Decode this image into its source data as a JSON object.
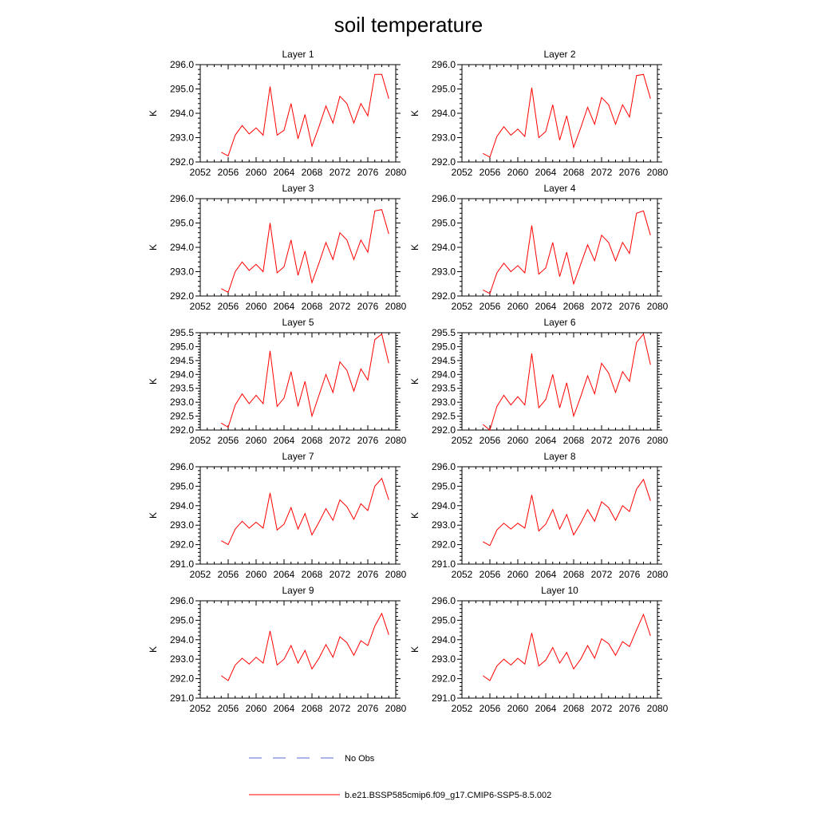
{
  "title": "soil temperature",
  "colors": {
    "model": "#ff0000",
    "obs": "#5a6bd6",
    "axis": "#000000"
  },
  "legend": {
    "items": [
      {
        "label": "No Obs",
        "style": "dashed",
        "color": "#5a6bd6"
      },
      {
        "label": "b.e21.BSSP585cmip6.f09_g17.CMIP6-SSP5-8.5.002",
        "style": "solid",
        "color": "#ff0000"
      }
    ]
  },
  "chart_data": [
    {
      "type": "line",
      "title": "Layer 1",
      "ylabel": "K",
      "xlim": [
        2052,
        2080
      ],
      "ylim": [
        292.0,
        296.0
      ],
      "xticks": [
        "2052",
        "2056",
        "2060",
        "2064",
        "2068",
        "2072",
        "2076",
        "2080"
      ],
      "yticks": [
        "292.0",
        "293.0",
        "294.0",
        "295.0",
        "296.0"
      ],
      "series": [
        {
          "name": "b.e21.BSSP585cmip6.f09_g17.CMIP6-SSP5-8.5.002",
          "x": [
            2055,
            2056,
            2057,
            2058,
            2059,
            2060,
            2061,
            2062,
            2063,
            2064,
            2065,
            2066,
            2067,
            2068,
            2069,
            2070,
            2071,
            2072,
            2073,
            2074,
            2075,
            2076,
            2077,
            2078,
            2079
          ],
          "y": [
            292.4,
            292.25,
            293.1,
            293.5,
            293.15,
            293.4,
            293.1,
            295.1,
            293.1,
            293.3,
            294.4,
            292.95,
            293.95,
            292.65,
            293.45,
            294.3,
            293.6,
            294.7,
            294.4,
            293.6,
            294.4,
            293.9,
            295.6,
            295.6,
            294.6
          ]
        }
      ]
    },
    {
      "type": "line",
      "title": "Layer 2",
      "ylabel": "K",
      "xlim": [
        2052,
        2080
      ],
      "ylim": [
        292.0,
        296.0
      ],
      "xticks": [
        "2052",
        "2056",
        "2060",
        "2064",
        "2068",
        "2072",
        "2076",
        "2080"
      ],
      "yticks": [
        "292.0",
        "293.0",
        "294.0",
        "295.0",
        "296.0"
      ],
      "series": [
        {
          "name": "b.e21.BSSP585cmip6.f09_g17.CMIP6-SSP5-8.5.002",
          "x": [
            2055,
            2056,
            2057,
            2058,
            2059,
            2060,
            2061,
            2062,
            2063,
            2064,
            2065,
            2066,
            2067,
            2068,
            2069,
            2070,
            2071,
            2072,
            2073,
            2074,
            2075,
            2076,
            2077,
            2078,
            2079
          ],
          "y": [
            292.35,
            292.2,
            293.05,
            293.45,
            293.1,
            293.35,
            293.05,
            295.05,
            293.0,
            293.25,
            294.35,
            292.9,
            293.9,
            292.6,
            293.4,
            294.25,
            293.55,
            294.65,
            294.35,
            293.55,
            294.35,
            293.85,
            295.55,
            295.6,
            294.6
          ]
        }
      ]
    },
    {
      "type": "line",
      "title": "Layer 3",
      "ylabel": "K",
      "xlim": [
        2052,
        2080
      ],
      "ylim": [
        292.0,
        296.0
      ],
      "xticks": [
        "2052",
        "2056",
        "2060",
        "2064",
        "2068",
        "2072",
        "2076",
        "2080"
      ],
      "yticks": [
        "292.0",
        "293.0",
        "294.0",
        "295.0",
        "296.0"
      ],
      "series": [
        {
          "name": "b.e21.BSSP585cmip6.f09_g17.CMIP6-SSP5-8.5.002",
          "x": [
            2055,
            2056,
            2057,
            2058,
            2059,
            2060,
            2061,
            2062,
            2063,
            2064,
            2065,
            2066,
            2067,
            2068,
            2069,
            2070,
            2071,
            2072,
            2073,
            2074,
            2075,
            2076,
            2077,
            2078,
            2079
          ],
          "y": [
            292.3,
            292.15,
            293.0,
            293.4,
            293.05,
            293.3,
            293.0,
            295.0,
            292.95,
            293.2,
            294.3,
            292.85,
            293.85,
            292.55,
            293.35,
            294.2,
            293.5,
            294.6,
            294.3,
            293.5,
            294.3,
            293.8,
            295.5,
            295.55,
            294.55
          ]
        }
      ]
    },
    {
      "type": "line",
      "title": "Layer 4",
      "ylabel": "K",
      "xlim": [
        2052,
        2080
      ],
      "ylim": [
        292.0,
        296.0
      ],
      "xticks": [
        "2052",
        "2056",
        "2060",
        "2064",
        "2068",
        "2072",
        "2076",
        "2080"
      ],
      "yticks": [
        "292.0",
        "293.0",
        "294.0",
        "295.0",
        "296.0"
      ],
      "series": [
        {
          "name": "b.e21.BSSP585cmip6.f09_g17.CMIP6-SSP5-8.5.002",
          "x": [
            2055,
            2056,
            2057,
            2058,
            2059,
            2060,
            2061,
            2062,
            2063,
            2064,
            2065,
            2066,
            2067,
            2068,
            2069,
            2070,
            2071,
            2072,
            2073,
            2074,
            2075,
            2076,
            2077,
            2078,
            2079
          ],
          "y": [
            292.25,
            292.1,
            292.95,
            293.35,
            293.0,
            293.25,
            292.95,
            294.9,
            292.9,
            293.15,
            294.2,
            292.8,
            293.8,
            292.5,
            293.3,
            294.1,
            293.45,
            294.5,
            294.2,
            293.45,
            294.2,
            293.75,
            295.4,
            295.5,
            294.5
          ]
        }
      ]
    },
    {
      "type": "line",
      "title": "Layer 5",
      "ylabel": "K",
      "xlim": [
        2052,
        2080
      ],
      "ylim": [
        292.0,
        295.5
      ],
      "xticks": [
        "2052",
        "2056",
        "2060",
        "2064",
        "2068",
        "2072",
        "2076",
        "2080"
      ],
      "yticks": [
        "292.0",
        "292.5",
        "293.0",
        "293.5",
        "294.0",
        "294.5",
        "295.0",
        "295.5"
      ],
      "series": [
        {
          "name": "b.e21.BSSP585cmip6.f09_g17.CMIP6-SSP5-8.5.002",
          "x": [
            2055,
            2056,
            2057,
            2058,
            2059,
            2060,
            2061,
            2062,
            2063,
            2064,
            2065,
            2066,
            2067,
            2068,
            2069,
            2070,
            2071,
            2072,
            2073,
            2074,
            2075,
            2076,
            2077,
            2078,
            2079
          ],
          "y": [
            292.25,
            292.1,
            292.9,
            293.3,
            292.95,
            293.25,
            292.95,
            294.85,
            292.85,
            293.15,
            294.1,
            292.85,
            293.75,
            292.5,
            293.25,
            294.0,
            293.35,
            294.45,
            294.15,
            293.4,
            294.2,
            293.8,
            295.25,
            295.45,
            294.4
          ]
        }
      ]
    },
    {
      "type": "line",
      "title": "Layer 6",
      "ylabel": "K",
      "xlim": [
        2052,
        2080
      ],
      "ylim": [
        292.0,
        295.5
      ],
      "xticks": [
        "2052",
        "2056",
        "2060",
        "2064",
        "2068",
        "2072",
        "2076",
        "2080"
      ],
      "yticks": [
        "292.0",
        "292.5",
        "293.0",
        "293.5",
        "294.0",
        "294.5",
        "295.0",
        "295.5"
      ],
      "series": [
        {
          "name": "b.e21.BSSP585cmip6.f09_g17.CMIP6-SSP5-8.5.002",
          "x": [
            2055,
            2056,
            2057,
            2058,
            2059,
            2060,
            2061,
            2062,
            2063,
            2064,
            2065,
            2066,
            2067,
            2068,
            2069,
            2070,
            2071,
            2072,
            2073,
            2074,
            2075,
            2076,
            2077,
            2078,
            2079
          ],
          "y": [
            292.2,
            292.0,
            292.85,
            293.25,
            292.9,
            293.2,
            292.9,
            294.75,
            292.8,
            293.1,
            294.0,
            292.8,
            293.7,
            292.5,
            293.2,
            293.95,
            293.3,
            294.4,
            294.05,
            293.35,
            294.1,
            293.75,
            295.15,
            295.45,
            294.35
          ]
        }
      ]
    },
    {
      "type": "line",
      "title": "Layer 7",
      "ylabel": "K",
      "xlim": [
        2052,
        2080
      ],
      "ylim": [
        291.0,
        296.0
      ],
      "xticks": [
        "2052",
        "2056",
        "2060",
        "2064",
        "2068",
        "2072",
        "2076",
        "2080"
      ],
      "yticks": [
        "291.0",
        "292.0",
        "293.0",
        "294.0",
        "295.0",
        "296.0"
      ],
      "series": [
        {
          "name": "b.e21.BSSP585cmip6.f09_g17.CMIP6-SSP5-8.5.002",
          "x": [
            2055,
            2056,
            2057,
            2058,
            2059,
            2060,
            2061,
            2062,
            2063,
            2064,
            2065,
            2066,
            2067,
            2068,
            2069,
            2070,
            2071,
            2072,
            2073,
            2074,
            2075,
            2076,
            2077,
            2078,
            2079
          ],
          "y": [
            292.2,
            292.0,
            292.8,
            293.2,
            292.85,
            293.15,
            292.85,
            294.65,
            292.75,
            293.05,
            293.9,
            292.8,
            293.6,
            292.5,
            293.15,
            293.85,
            293.25,
            294.3,
            293.95,
            293.3,
            294.1,
            293.75,
            295.0,
            295.4,
            294.3
          ]
        }
      ]
    },
    {
      "type": "line",
      "title": "Layer 8",
      "ylabel": "K",
      "xlim": [
        2052,
        2080
      ],
      "ylim": [
        291.0,
        296.0
      ],
      "xticks": [
        "2052",
        "2056",
        "2060",
        "2064",
        "2068",
        "2072",
        "2076",
        "2080"
      ],
      "yticks": [
        "291.0",
        "292.0",
        "293.0",
        "294.0",
        "295.0",
        "296.0"
      ],
      "series": [
        {
          "name": "b.e21.BSSP585cmip6.f09_g17.CMIP6-SSP5-8.5.002",
          "x": [
            2055,
            2056,
            2057,
            2058,
            2059,
            2060,
            2061,
            2062,
            2063,
            2064,
            2065,
            2066,
            2067,
            2068,
            2069,
            2070,
            2071,
            2072,
            2073,
            2074,
            2075,
            2076,
            2077,
            2078,
            2079
          ],
          "y": [
            292.15,
            291.95,
            292.75,
            293.1,
            292.8,
            293.1,
            292.85,
            294.55,
            292.7,
            293.05,
            293.8,
            292.8,
            293.55,
            292.5,
            293.1,
            293.8,
            293.2,
            294.2,
            293.9,
            293.25,
            294.0,
            293.7,
            294.85,
            295.35,
            294.25
          ]
        }
      ]
    },
    {
      "type": "line",
      "title": "Layer 9",
      "ylabel": "K",
      "xlim": [
        2052,
        2080
      ],
      "ylim": [
        291.0,
        296.0
      ],
      "xticks": [
        "2052",
        "2056",
        "2060",
        "2064",
        "2068",
        "2072",
        "2076",
        "2080"
      ],
      "yticks": [
        "291.0",
        "292.0",
        "293.0",
        "294.0",
        "295.0",
        "296.0"
      ],
      "series": [
        {
          "name": "b.e21.BSSP585cmip6.f09_g17.CMIP6-SSP5-8.5.002",
          "x": [
            2055,
            2056,
            2057,
            2058,
            2059,
            2060,
            2061,
            2062,
            2063,
            2064,
            2065,
            2066,
            2067,
            2068,
            2069,
            2070,
            2071,
            2072,
            2073,
            2074,
            2075,
            2076,
            2077,
            2078,
            2079
          ],
          "y": [
            292.15,
            291.9,
            292.7,
            293.05,
            292.75,
            293.1,
            292.8,
            294.45,
            292.7,
            293.0,
            293.7,
            292.8,
            293.45,
            292.5,
            293.05,
            293.75,
            293.1,
            294.15,
            293.85,
            293.2,
            293.95,
            293.7,
            294.7,
            295.35,
            294.25
          ]
        }
      ]
    },
    {
      "type": "line",
      "title": "Layer 10",
      "ylabel": "K",
      "xlim": [
        2052,
        2080
      ],
      "ylim": [
        291.0,
        296.0
      ],
      "xticks": [
        "2052",
        "2056",
        "2060",
        "2064",
        "2068",
        "2072",
        "2076",
        "2080"
      ],
      "yticks": [
        "291.0",
        "292.0",
        "293.0",
        "294.0",
        "295.0",
        "296.0"
      ],
      "series": [
        {
          "name": "b.e21.BSSP585cmip6.f09_g17.CMIP6-SSP5-8.5.002",
          "x": [
            2055,
            2056,
            2057,
            2058,
            2059,
            2060,
            2061,
            2062,
            2063,
            2064,
            2065,
            2066,
            2067,
            2068,
            2069,
            2070,
            2071,
            2072,
            2073,
            2074,
            2075,
            2076,
            2077,
            2078,
            2079
          ],
          "y": [
            292.15,
            291.9,
            292.65,
            293.0,
            292.7,
            293.05,
            292.75,
            294.35,
            292.65,
            292.95,
            293.6,
            292.8,
            293.35,
            292.5,
            293.0,
            293.7,
            293.05,
            294.05,
            293.8,
            293.2,
            293.9,
            293.65,
            294.5,
            295.3,
            294.2
          ]
        }
      ]
    }
  ]
}
